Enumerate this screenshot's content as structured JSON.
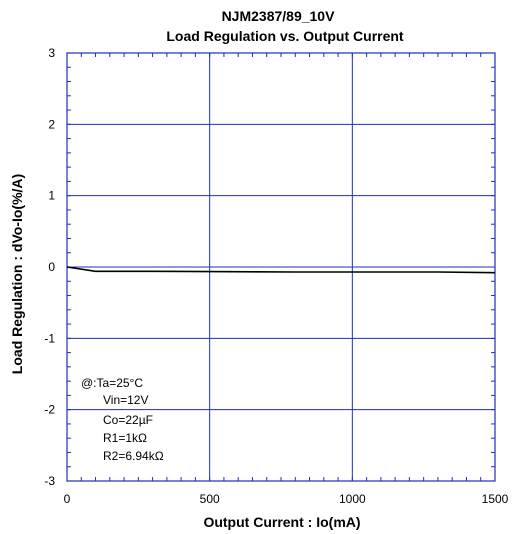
{
  "chart_data": {
    "type": "line",
    "title": "NJM2387/89_10V",
    "subtitle": "Load Regulation vs. Output Current",
    "xlabel": "Output Current : Io(mA)",
    "ylabel": "Load Regulation : dVo-Io(%/A)",
    "xlim": [
      0,
      1500
    ],
    "ylim": [
      -3,
      3
    ],
    "x_ticks": [
      0,
      500,
      1000,
      1500
    ],
    "y_ticks": [
      -3,
      -2,
      -1,
      0,
      1,
      2,
      3
    ],
    "x_tick_labels": [
      "0",
      "500",
      "1000",
      "1500"
    ],
    "y_tick_labels": [
      "-3",
      "-2",
      "-1",
      "0",
      "1",
      "2",
      "3"
    ],
    "grid": true,
    "series": [
      {
        "x": [
          0,
          100,
          300,
          500,
          800,
          1000,
          1300,
          1500
        ],
        "y": [
          0,
          -0.06,
          -0.06,
          -0.065,
          -0.07,
          -0.07,
          -0.07,
          -0.08
        ]
      }
    ],
    "annotation": [
      "@:Ta=25°C",
      "Vin=12V",
      "Co=22µF",
      "R1=1kΩ",
      "R2=6.94kΩ"
    ],
    "colors": {
      "frame": "#1f2fb8",
      "grid": "#1f2fb8",
      "line": "#000000"
    }
  }
}
